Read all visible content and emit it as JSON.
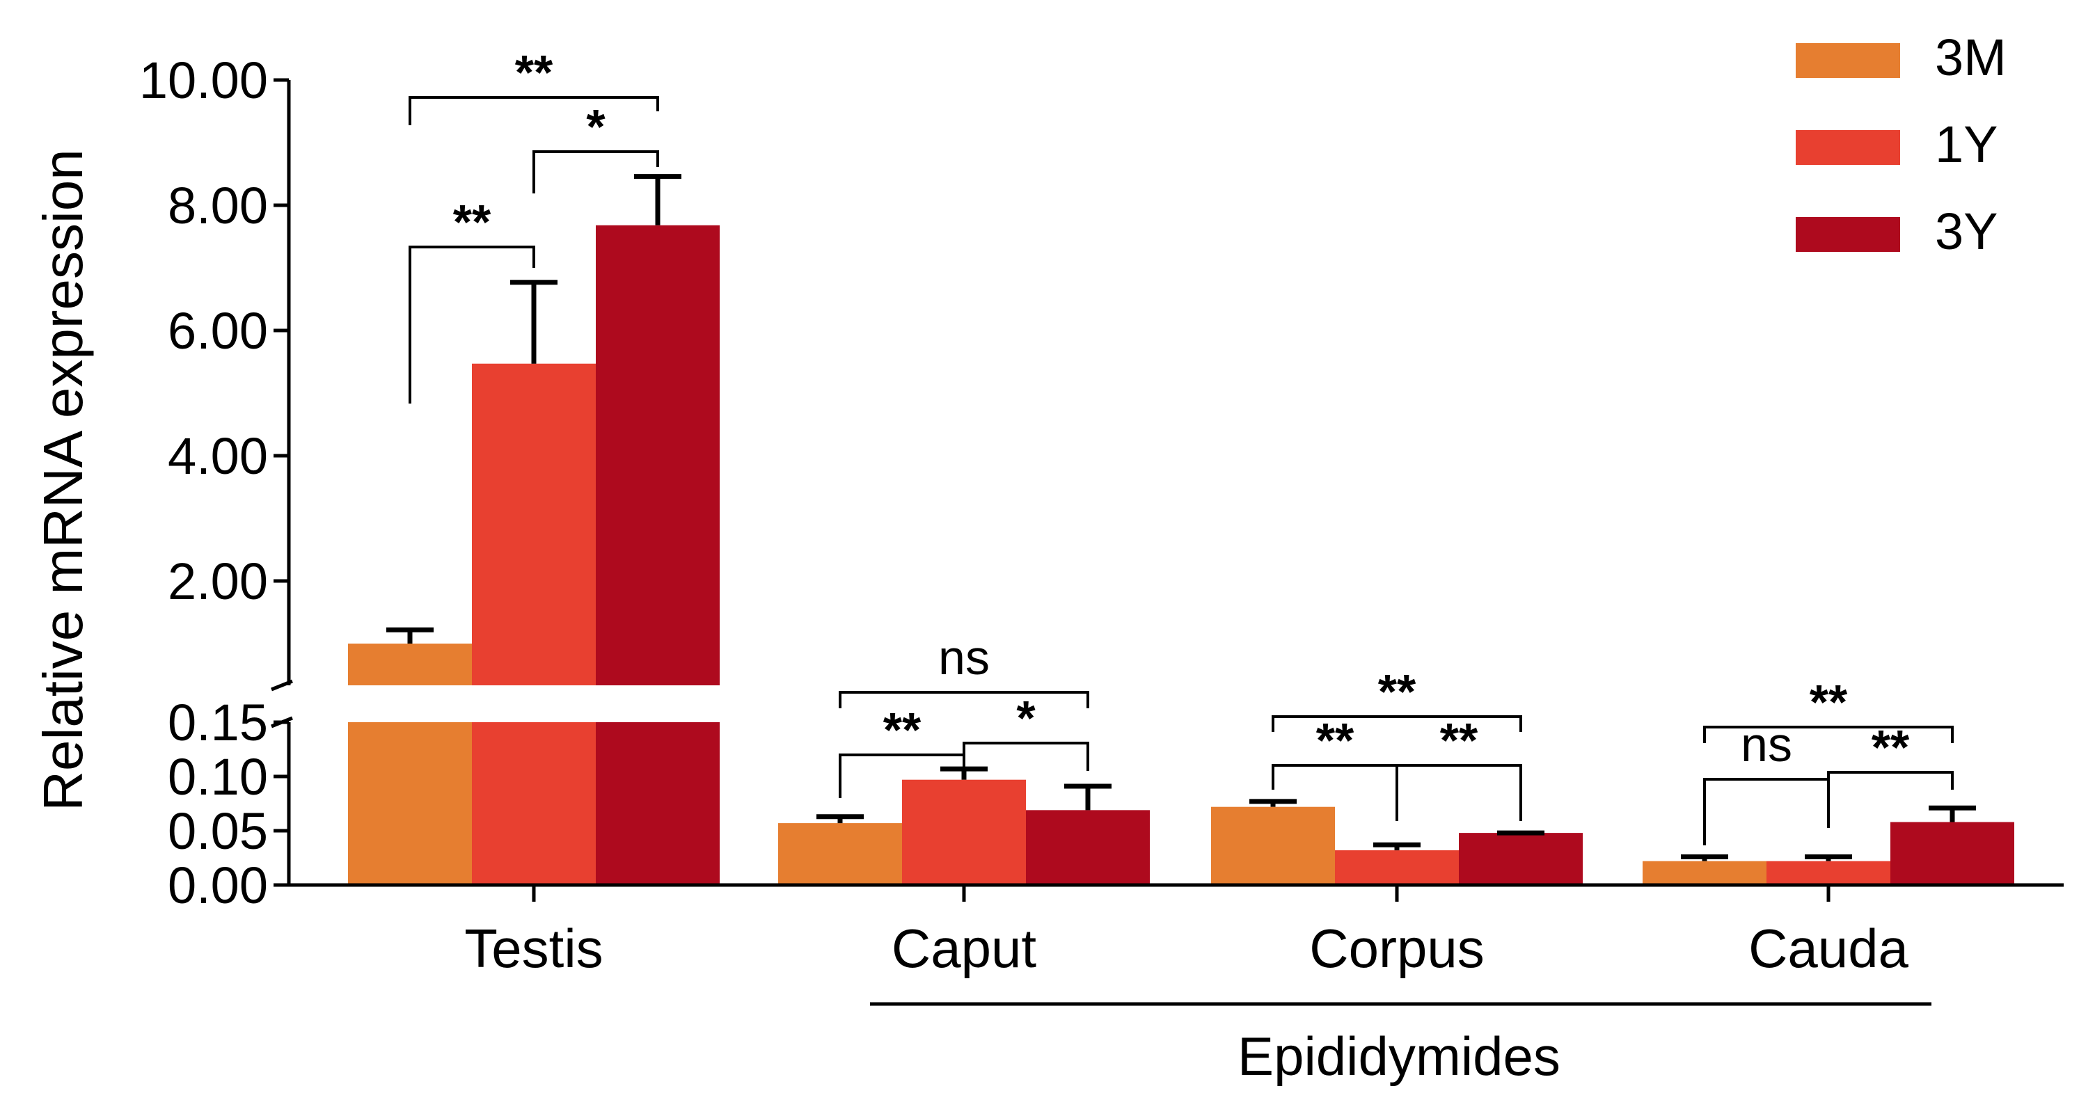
{
  "chart_data": {
    "type": "bar",
    "ylabel": "Relative mRNA expression",
    "categories": [
      "Testis",
      "Caput",
      "Corpus",
      "Cauda"
    ],
    "group_label": "Epididymides",
    "series": [
      {
        "name": "3M",
        "color": "#E67E30",
        "values": [
          1.0,
          0.057,
          0.072,
          0.022
        ],
        "errors": [
          0.22,
          0.006,
          0.005,
          0.004
        ]
      },
      {
        "name": "1Y",
        "color": "#E84030",
        "values": [
          5.47,
          0.097,
          0.032,
          0.022
        ],
        "errors": [
          1.3,
          0.01,
          0.005,
          0.004
        ]
      },
      {
        "name": "3Y",
        "color": "#AE0A1E",
        "values": [
          7.68,
          0.069,
          0.048,
          0.058
        ],
        "errors": [
          0.78,
          0.022,
          0.0,
          0.013
        ]
      }
    ],
    "y_axis": {
      "broken": true,
      "lower_range": [
        0,
        0.15
      ],
      "lower_ticks": [
        "0.00",
        "0.05",
        "0.10",
        "0.15"
      ],
      "upper_range": [
        0.5,
        10
      ],
      "upper_ticks": [
        "2.00",
        "4.00",
        "6.00",
        "8.00",
        "10.00"
      ]
    },
    "significance": [
      {
        "category": "Testis",
        "from": "3M",
        "to": "3Y",
        "label": "**"
      },
      {
        "category": "Testis",
        "from": "1Y",
        "to": "3Y",
        "label": "*"
      },
      {
        "category": "Testis",
        "from": "3M",
        "to": "1Y",
        "label": "**"
      },
      {
        "category": "Caput",
        "from": "3M",
        "to": "3Y",
        "label": "ns"
      },
      {
        "category": "Caput",
        "from": "3M",
        "to": "1Y",
        "label": "**"
      },
      {
        "category": "Caput",
        "from": "1Y",
        "to": "3Y",
        "label": "*"
      },
      {
        "category": "Corpus",
        "from": "3M",
        "to": "3Y",
        "label": "**"
      },
      {
        "category": "Corpus",
        "from": "3M",
        "to": "1Y",
        "label": "**"
      },
      {
        "category": "Corpus",
        "from": "1Y",
        "to": "3Y",
        "label": "**"
      },
      {
        "category": "Cauda",
        "from": "3M",
        "to": "3Y",
        "label": "**"
      },
      {
        "category": "Cauda",
        "from": "3M",
        "to": "1Y",
        "label": "ns"
      },
      {
        "category": "Cauda",
        "from": "1Y",
        "to": "3Y",
        "label": "**"
      }
    ],
    "legend_position": "top-right"
  }
}
